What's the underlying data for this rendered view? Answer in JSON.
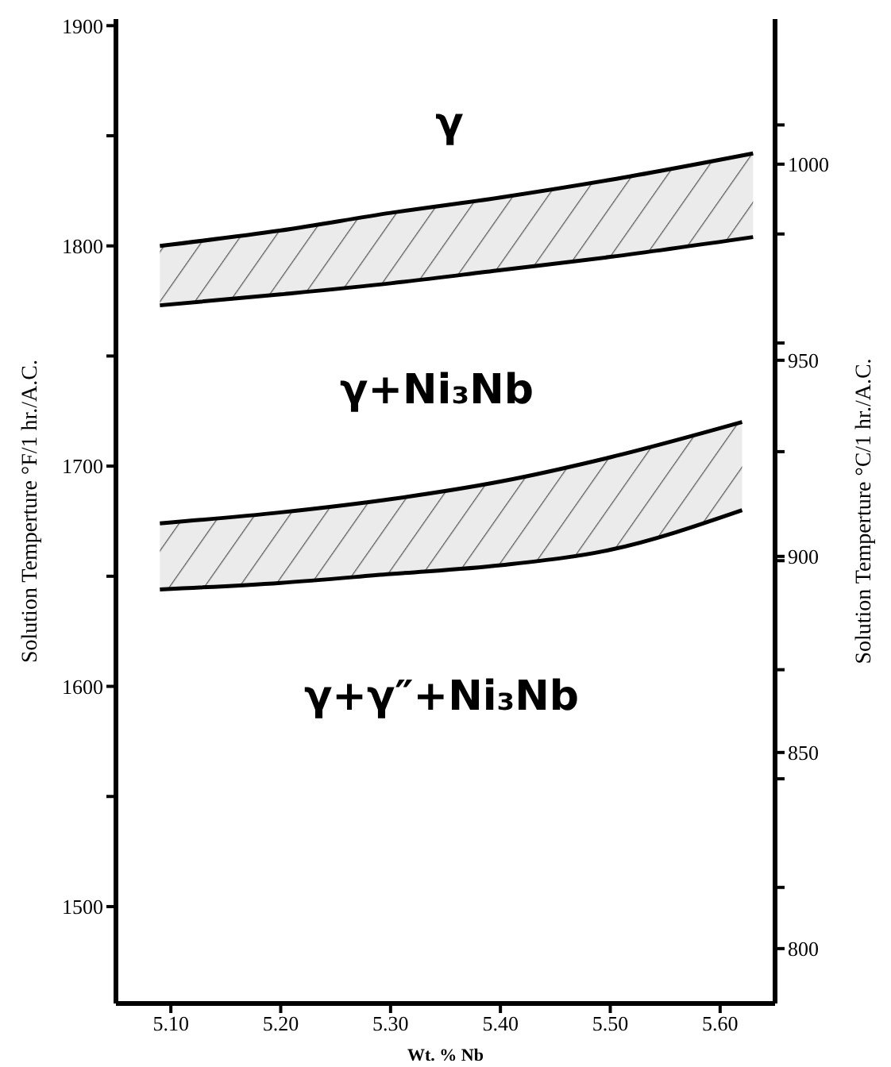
{
  "chart_data": {
    "type": "line",
    "xlabel": "Wt. % Nb",
    "ylabel": "Solution Temperture °F/1 hr./A.C.",
    "y2label": "Solution Temperture °C/1 hr./A.C.",
    "xlim": [
      5.05,
      5.65
    ],
    "xticks": [
      {
        "value": 5.1,
        "label": "5.10"
      },
      {
        "value": 5.2,
        "label": "5.20"
      },
      {
        "value": 5.3,
        "label": "5.30"
      },
      {
        "value": 5.4,
        "label": "5.40"
      },
      {
        "value": 5.5,
        "label": "5.50"
      },
      {
        "value": 5.6,
        "label": "5.60"
      }
    ],
    "ylim": [
      1456,
      1903
    ],
    "yticks": [
      1500,
      {
        "value": 1550,
        "label": null
      },
      1600,
      {
        "value": 1650,
        "label": null
      },
      1700,
      {
        "value": 1750,
        "label": null
      },
      1800,
      {
        "value": 1850,
        "label": null
      },
      1900
    ],
    "y2lim": [
      786,
      1037
    ],
    "y2ticks": [
      800,
      {
        "value": 815.6,
        "label": null
      },
      {
        "value": 843.3,
        "label": null
      },
      850,
      {
        "value": 871.1,
        "label": null
      },
      {
        "value": 898.9,
        "label": null
      },
      900,
      {
        "value": 926.7,
        "label": null
      },
      950,
      {
        "value": 954.4,
        "label": null
      },
      {
        "value": 982.2,
        "label": null
      },
      1000,
      {
        "value": 1010,
        "label": null
      }
    ],
    "series": [
      {
        "color": "#000000",
        "x": [
          5.09,
          5.2,
          5.3,
          5.4,
          5.5,
          5.63
        ],
        "values": [
          1800,
          1807,
          1815,
          1822,
          1830,
          1842
        ],
        "upper": [
          1800,
          1807,
          1815,
          1822,
          1830,
          1842
        ],
        "lower": [
          1773,
          1778,
          1783,
          1789,
          1795,
          1804
        ]
      },
      {
        "color": "#000000",
        "x": [
          5.09,
          5.2,
          5.3,
          5.4,
          5.5,
          5.62
        ],
        "values": [
          1674,
          1679,
          1685,
          1693,
          1704,
          1720
        ],
        "upper": [
          1674,
          1679,
          1685,
          1693,
          1704,
          1720
        ],
        "lower": [
          1644,
          1647,
          1651,
          1655,
          1662,
          1680
        ]
      },
      {
        "color": "#000000",
        "x": [
          5.09,
          5.2,
          5.3,
          5.4,
          5.5,
          5.63
        ],
        "values": [
          1773,
          1778,
          1783,
          1789,
          1795,
          1804
        ]
      },
      {
        "color": "#000000",
        "x": [
          5.09,
          5.2,
          5.3,
          5.4,
          5.5,
          5.62
        ],
        "values": [
          1644,
          1647,
          1651,
          1655,
          1662,
          1680
        ]
      }
    ],
    "annotations": [
      "γ",
      "γ+Ni₃Nb",
      "γ+γ″+Ni₃Nb"
    ]
  }
}
